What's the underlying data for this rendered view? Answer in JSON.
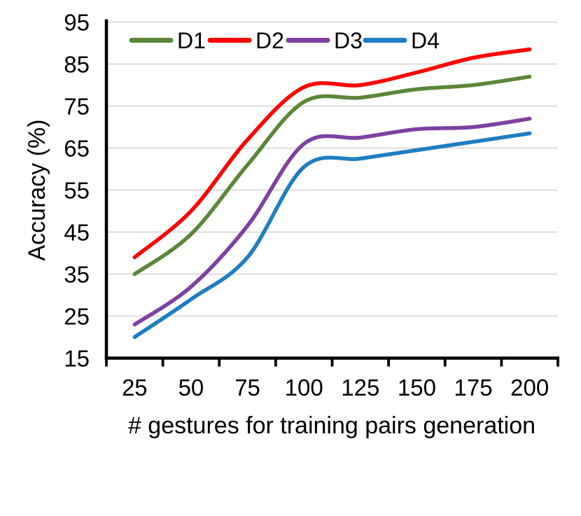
{
  "figure": {
    "background": "#FFFFFF",
    "text_color": "#000000",
    "grid_color": "#D9D9D9",
    "axis_color": "#000000"
  },
  "chart_data": {
    "type": "line",
    "title": "",
    "xlabel": "# gestures for training pairs generation",
    "ylabel": "Accuracy (%)",
    "x": [
      25,
      50,
      75,
      100,
      125,
      150,
      175,
      200
    ],
    "xtick_labels": [
      "25",
      "50",
      "75",
      "100",
      "125",
      "150",
      "175",
      "200"
    ],
    "yticks": [
      15,
      25,
      35,
      45,
      55,
      65,
      75,
      85,
      95
    ],
    "ylim": [
      15,
      95
    ],
    "grid": true,
    "line_smoothing": true,
    "legend_position": "top-inside",
    "series": [
      {
        "name": "D1",
        "color": "#5D8639",
        "values": [
          35,
          44.5,
          61,
          76,
          77,
          79,
          80,
          82
        ]
      },
      {
        "name": "D2",
        "color": "#FE0000",
        "values": [
          39,
          50,
          67,
          79.5,
          80,
          83,
          86.5,
          88.5
        ]
      },
      {
        "name": "D3",
        "color": "#7E41A0",
        "values": [
          23,
          32,
          46.5,
          66,
          67.5,
          69.5,
          70,
          72
        ]
      },
      {
        "name": "D4",
        "color": "#1F7EC2",
        "values": [
          20,
          29,
          39,
          60.5,
          62.5,
          64.5,
          66.5,
          68.5
        ]
      }
    ]
  }
}
